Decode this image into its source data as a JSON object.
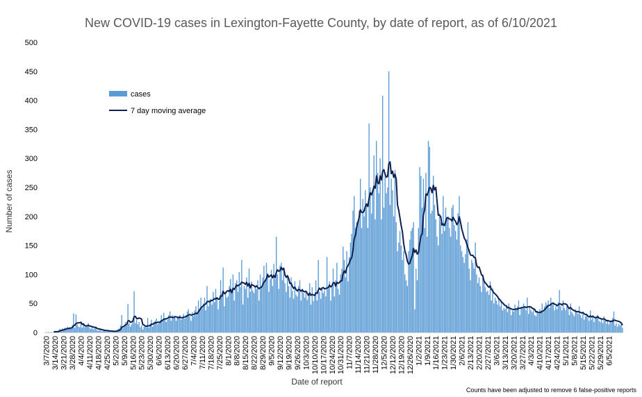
{
  "chart_data": {
    "type": "bar",
    "title": "New COVID-19 cases in Lexington-Fayette County, by date of report, as of 6/10/2021",
    "xlabel": "Date of report",
    "ylabel": "Number of cases",
    "ylim": [
      0,
      500
    ],
    "yticks": [
      0,
      50,
      100,
      150,
      200,
      250,
      300,
      350,
      400,
      450,
      500
    ],
    "grid": false,
    "legend_position": "top-left",
    "note": "Counts have been adjusted to remove 6 false-positive reports",
    "colors": {
      "bars": "#5b9bd5",
      "line": "#0f1f4f"
    },
    "x_start": "3/7/2020",
    "x_tick_labels": [
      "3/7/2020",
      "3/14/2020",
      "3/21/2020",
      "3/28/2020",
      "4/4/2020",
      "4/11/2020",
      "4/18/2020",
      "4/25/2020",
      "5/2/2020",
      "5/9/2020",
      "5/16/2020",
      "5/23/2020",
      "5/30/2020",
      "6/6/2020",
      "6/13/2020",
      "6/20/2020",
      "6/27/2020",
      "7/4/2020",
      "7/11/2020",
      "7/18/2020",
      "7/25/2020",
      "8/1/2020",
      "8/8/2020",
      "8/15/2020",
      "8/22/2020",
      "8/29/2020",
      "9/5/2020",
      "9/12/2020",
      "9/19/2020",
      "9/26/2020",
      "10/3/2020",
      "10/10/2020",
      "10/17/2020",
      "10/24/2020",
      "10/31/2020",
      "11/7/2020",
      "11/14/2020",
      "11/21/2020",
      "11/28/2020",
      "12/5/2020",
      "12/12/2020",
      "12/19/2020",
      "12/26/2020",
      "1/2/2021",
      "1/9/2021",
      "1/16/2021",
      "1/23/2021",
      "1/30/2021",
      "2/6/2021",
      "2/13/2021",
      "2/20/2021",
      "2/27/2021",
      "3/6/2021",
      "3/13/2021",
      "3/20/2021",
      "3/27/2021",
      "4/3/2021",
      "4/10/2021",
      "4/17/2021",
      "4/24/2021",
      "5/1/2021",
      "5/8/2021",
      "5/15/2021",
      "5/22/2021",
      "5/29/2021",
      "6/5/2021"
    ],
    "series": [
      {
        "name": "cases",
        "type": "bar",
        "weekly_values": [
          [
            1,
            0,
            1,
            0,
            1,
            0,
            2
          ],
          [
            3,
            1,
            2,
            4,
            6,
            5,
            7
          ],
          [
            6,
            8,
            5,
            10,
            7,
            9,
            8
          ],
          [
            12,
            33,
            8,
            31,
            14,
            10,
            9
          ],
          [
            18,
            8,
            14,
            9,
            12,
            10,
            16
          ],
          [
            8,
            6,
            9,
            5,
            7,
            10,
            4
          ],
          [
            3,
            4,
            5,
            2,
            3,
            5,
            2
          ],
          [
            2,
            3,
            2,
            1,
            3,
            2,
            2
          ],
          [
            2,
            4,
            6,
            7,
            12,
            30,
            8
          ],
          [
            10,
            18,
            12,
            49,
            15,
            10,
            14
          ],
          [
            20,
            71,
            16,
            22,
            14,
            18,
            9
          ],
          [
            12,
            5,
            10,
            11,
            9,
            25,
            8
          ],
          [
            15,
            22,
            10,
            18,
            20,
            24,
            14
          ],
          [
            16,
            20,
            30,
            22,
            34,
            25,
            18
          ],
          [
            22,
            30,
            36,
            20,
            30,
            25,
            28
          ],
          [
            20,
            25,
            28,
            30,
            22,
            26,
            32
          ],
          [
            24,
            30,
            36,
            40,
            28,
            20,
            35
          ],
          [
            28,
            38,
            45,
            30,
            55,
            40,
            60
          ],
          [
            42,
            50,
            60,
            38,
            80,
            45,
            55
          ],
          [
            58,
            48,
            70,
            52,
            75,
            60,
            40
          ],
          [
            55,
            90,
            65,
            112,
            45,
            70,
            60
          ],
          [
            62,
            80,
            92,
            70,
            100,
            55,
            85
          ],
          [
            90,
            70,
            104,
            78,
            125,
            48,
            80
          ],
          [
            75,
            95,
            60,
            110,
            70,
            88,
            72
          ],
          [
            68,
            80,
            75,
            90,
            55,
            100,
            78
          ],
          [
            95,
            115,
            88,
            120,
            102,
            70,
            92
          ],
          [
            108,
            80,
            118,
            92,
            165,
            100,
            75
          ],
          [
            115,
            120,
            90,
            110,
            85,
            70,
            95
          ],
          [
            80,
            60,
            95,
            72,
            58,
            88,
            65
          ],
          [
            62,
            80,
            90,
            55,
            75,
            68,
            60
          ],
          [
            70,
            56,
            62,
            85,
            48,
            78,
            54
          ],
          [
            62,
            90,
            55,
            125,
            70,
            58,
            76
          ],
          [
            68,
            72,
            62,
            130,
            75,
            88,
            55
          ],
          [
            80,
            110,
            62,
            90,
            120,
            75,
            65
          ],
          [
            100,
            110,
            148,
            125,
            95,
            140,
            88
          ],
          [
            130,
            155,
            170,
            210,
            235,
            180,
            190
          ],
          [
            190,
            210,
            265,
            180,
            230,
            200,
            245
          ],
          [
            220,
            180,
            360,
            250,
            205,
            245,
            305
          ],
          [
            195,
            330,
            275,
            240,
            300,
            195,
            408
          ],
          [
            215,
            275,
            240,
            250,
            450,
            220,
            265
          ],
          [
            245,
            200,
            280,
            190,
            140,
            155,
            175
          ],
          [
            150,
            125,
            140,
            100,
            90,
            80,
            140
          ],
          [
            160,
            175,
            180,
            190,
            40,
            110,
            90
          ],
          [
            180,
            285,
            270,
            215,
            265,
            180,
            275
          ],
          [
            165,
            330,
            320,
            205,
            210,
            270,
            220
          ],
          [
            195,
            165,
            150,
            205,
            190,
            170,
            235
          ],
          [
            175,
            215,
            195,
            200,
            180,
            165,
            215
          ],
          [
            220,
            185,
            175,
            160,
            205,
            235,
            150
          ],
          [
            140,
            130,
            120,
            135,
            160,
            190,
            110
          ],
          [
            90,
            125,
            120,
            110,
            155,
            100,
            85
          ],
          [
            95,
            80,
            70,
            100,
            90,
            78,
            70
          ],
          [
            72,
            65,
            88,
            55,
            76,
            50,
            60
          ],
          [
            55,
            48,
            60,
            45,
            52,
            38,
            42
          ],
          [
            40,
            45,
            35,
            50,
            42,
            30,
            38
          ],
          [
            36,
            48,
            40,
            45,
            55,
            30,
            42
          ],
          [
            42,
            50,
            45,
            38,
            60,
            32,
            44
          ],
          [
            38,
            35,
            40,
            30,
            28,
            36,
            32
          ],
          [
            40,
            38,
            50,
            35,
            45,
            52,
            48
          ],
          [
            55,
            42,
            60,
            48,
            50,
            38,
            45
          ],
          [
            40,
            52,
            73,
            45,
            38,
            55,
            42
          ],
          [
            38,
            45,
            42,
            30,
            50,
            35,
            32
          ],
          [
            28,
            40,
            35,
            32,
            45,
            30,
            25
          ],
          [
            35,
            22,
            28,
            32,
            25,
            20,
            38
          ],
          [
            22,
            30,
            18,
            25,
            28,
            30,
            20
          ],
          [
            18,
            24,
            16,
            28,
            20,
            15,
            22
          ],
          [
            14,
            18,
            20,
            25,
            36,
            12,
            16
          ],
          [
            10,
            15,
            12,
            14,
            8
          ]
        ]
      },
      {
        "name": "7 day moving average",
        "type": "line",
        "values": "7-day trailing mean of cases"
      }
    ]
  }
}
